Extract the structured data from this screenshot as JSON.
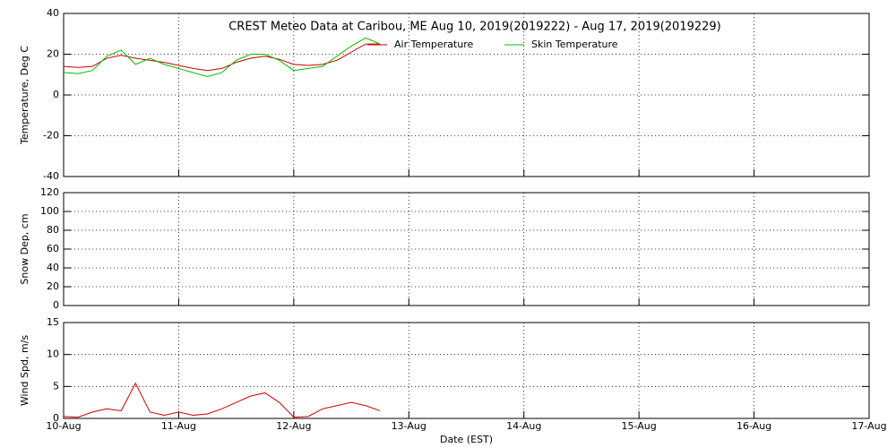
{
  "chart_data": [
    {
      "type": "line",
      "title": "CREST Meteo Data at Caribou, ME   Aug 10, 2019(2019222) - Aug 17, 2019(2019229)",
      "y_label": "Temperature, Deg C",
      "x": [
        10,
        10.125,
        10.25,
        10.375,
        10.5,
        10.625,
        10.75,
        10.875,
        11,
        11.125,
        11.25,
        11.375,
        11.5,
        11.625,
        11.75,
        11.875,
        12,
        12.125,
        12.25,
        12.375,
        12.5,
        12.625,
        12.75
      ],
      "series": [
        {
          "name": "Air Temperature",
          "color": "#cc0000",
          "values": [
            14,
            13.5,
            14,
            18,
            19.5,
            18,
            17,
            16,
            14.5,
            13,
            12,
            13,
            16,
            18,
            19,
            17.5,
            15,
            14.5,
            15,
            17,
            21,
            25,
            25
          ]
        },
        {
          "name": "Skin Temperature",
          "color": "#00bb00",
          "values": [
            11,
            10.5,
            12,
            19,
            22,
            15,
            18,
            15,
            13,
            11,
            9,
            11,
            17,
            20,
            20,
            17,
            12,
            13,
            14,
            19,
            24,
            28,
            25
          ]
        }
      ],
      "xlim": [
        10,
        17
      ],
      "xticks": [
        10,
        11,
        12,
        13,
        14,
        15,
        16,
        17
      ],
      "ylim": [
        -40,
        40
      ],
      "yticks": [
        -40,
        -20,
        0,
        20,
        40
      ],
      "grid": true
    },
    {
      "type": "line",
      "y_label": "Snow Dep, cm",
      "x": [],
      "series": [],
      "xlim": [
        10,
        17
      ],
      "xticks": [
        10,
        11,
        12,
        13,
        14,
        15,
        16,
        17
      ],
      "ylim": [
        0,
        120
      ],
      "yticks": [
        0,
        20,
        40,
        60,
        80,
        100,
        120
      ],
      "grid": true
    },
    {
      "type": "line",
      "y_label": "Wind Spd, m/s",
      "x_label": "Date (EST)",
      "x": [
        10,
        10.125,
        10.25,
        10.375,
        10.5,
        10.625,
        10.75,
        10.875,
        11,
        11.125,
        11.25,
        11.375,
        11.5,
        11.625,
        11.75,
        11.875,
        12,
        12.125,
        12.25,
        12.375,
        12.5,
        12.625,
        12.75
      ],
      "series": [
        {
          "name": "Wind Speed",
          "color": "#cc0000",
          "values": [
            0.3,
            0.2,
            1,
            1.5,
            1.2,
            5.5,
            1,
            0.5,
            1,
            0.5,
            0.7,
            1.5,
            2.5,
            3.5,
            4,
            2.5,
            0.2,
            0.3,
            1.5,
            2,
            2.5,
            2,
            1.2
          ]
        }
      ],
      "xlim": [
        10,
        17
      ],
      "xticks": [
        {
          "value": 10,
          "label": "10-Aug"
        },
        {
          "value": 11,
          "label": "11-Aug"
        },
        {
          "value": 12,
          "label": "12-Aug"
        },
        {
          "value": 13,
          "label": "13-Aug"
        },
        {
          "value": 14,
          "label": "14-Aug"
        },
        {
          "value": 15,
          "label": "15-Aug"
        },
        {
          "value": 16,
          "label": "16-Aug"
        },
        {
          "value": 17,
          "label": "17-Aug"
        }
      ],
      "ylim": [
        0,
        15
      ],
      "yticks": [
        0,
        5,
        10,
        15
      ],
      "grid": true
    }
  ]
}
